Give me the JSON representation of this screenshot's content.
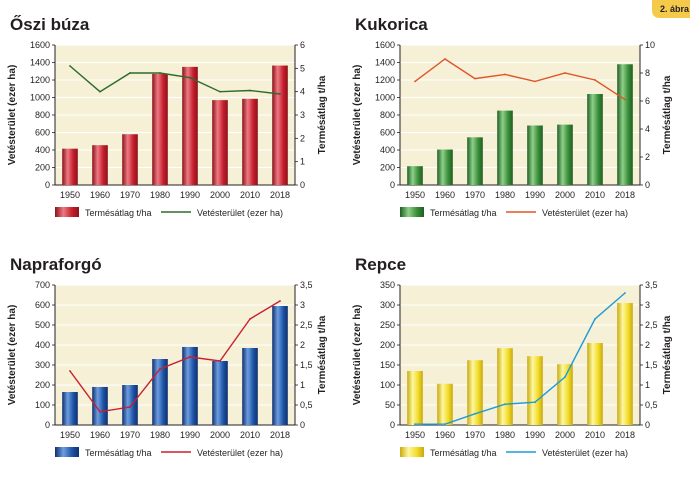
{
  "badge": "2. ábra",
  "colors": {
    "plot_bg": "#f5f0d6",
    "badge_bg": "#f5c94a"
  },
  "chart_data": [
    {
      "type": "bar",
      "title": "Őszi búza",
      "categories": [
        "1950",
        "1960",
        "1970",
        "1980",
        "1990",
        "2000",
        "2010",
        "2018"
      ],
      "ylabel": "Vetésterület (ezer ha)",
      "y2label": "Termésátlag t/ha",
      "ylim": [
        0,
        1600
      ],
      "yticks": [
        "0",
        "200",
        "400",
        "600",
        "800",
        "1000",
        "1200",
        "1400",
        "1600"
      ],
      "y2lim": [
        0,
        6
      ],
      "y2ticks": [
        "0",
        "1",
        "2",
        "3",
        "4",
        "5",
        "6"
      ],
      "bar_series": {
        "name": "Termésátlag t/ha",
        "values": [
          415,
          455,
          580,
          1270,
          1350,
          970,
          985,
          1365
        ],
        "color": "#c8202e",
        "light": "#ec7a84",
        "dark": "#8c1119"
      },
      "line_series": {
        "name": "Vetésterület (ezer ha)",
        "values": [
          5.1,
          4.0,
          4.8,
          4.8,
          4.6,
          4.0,
          4.05,
          3.9
        ],
        "color": "#2e6b2a"
      }
    },
    {
      "type": "bar",
      "title": "Kukorica",
      "categories": [
        "1950",
        "1960",
        "1970",
        "1980",
        "1990",
        "2000",
        "2010",
        "2018"
      ],
      "ylabel": "Vetésterület (ezer ha)",
      "y2label": "Termésátlag t/ha",
      "ylim": [
        0,
        1600
      ],
      "yticks": [
        "0",
        "200",
        "400",
        "600",
        "800",
        "1000",
        "1200",
        "1400",
        "1600"
      ],
      "y2lim": [
        0,
        10
      ],
      "y2ticks": [
        "0",
        "2",
        "4",
        "6",
        "8",
        "10"
      ],
      "bar_series": {
        "name": "Termésátlag t/ha",
        "values": [
          215,
          405,
          545,
          850,
          680,
          690,
          1040,
          1380
        ],
        "color": "#3a8f3a",
        "light": "#8fd08a",
        "dark": "#1f5e22"
      },
      "line_series": {
        "name": "Vetésterület (ezer ha)",
        "values": [
          7.4,
          9.0,
          7.6,
          7.9,
          7.4,
          8.0,
          7.5,
          6.1
        ],
        "color": "#e0552a"
      }
    },
    {
      "type": "bar",
      "title": "Napraforgó",
      "categories": [
        "1950",
        "1960",
        "1970",
        "1980",
        "1990",
        "2000",
        "2010",
        "2018"
      ],
      "ylabel": "Vetésterület (ezer ha)",
      "y2label": "Termésátlag t/ha",
      "ylim": [
        0,
        700
      ],
      "yticks": [
        "0",
        "100",
        "200",
        "300",
        "400",
        "500",
        "600",
        "700"
      ],
      "y2lim": [
        0,
        3.5
      ],
      "y2ticks": [
        "0",
        "0,5",
        "1",
        "1,5",
        "2",
        "2,5",
        "3",
        "3,5"
      ],
      "bar_series": {
        "name": "Termésátlag t/ha",
        "values": [
          165,
          190,
          200,
          330,
          390,
          320,
          385,
          595
        ],
        "color": "#1f56a8",
        "light": "#6e9ee0",
        "dark": "#0f2f6e"
      },
      "line_series": {
        "name": "Vetésterület (ezer ha)",
        "values": [
          1.35,
          0.33,
          0.45,
          1.4,
          1.7,
          1.6,
          2.65,
          3.1
        ],
        "color": "#c8202e"
      }
    },
    {
      "type": "bar",
      "title": "Repce",
      "categories": [
        "1950",
        "1960",
        "1970",
        "1980",
        "1990",
        "2000",
        "2010",
        "2018"
      ],
      "ylabel": "Vetésterület (ezer ha)",
      "y2label": "Termésátlag t/ha",
      "ylim": [
        0,
        350
      ],
      "yticks": [
        "0",
        "50",
        "100",
        "150",
        "200",
        "250",
        "300",
        "350"
      ],
      "y2lim": [
        0,
        3.5
      ],
      "y2ticks": [
        "0",
        "0,5",
        "1",
        "1,5",
        "2",
        "2,5",
        "3",
        "3,5"
      ],
      "bar_series": {
        "name": "Termésátlag t/ha",
        "values": [
          135,
          103,
          162,
          192,
          172,
          152,
          205,
          305
        ],
        "color": "#f2dc2a",
        "light": "#fdf7a0",
        "dark": "#c9a90e"
      },
      "line_series": {
        "name": "Vetésterület (ezer ha)",
        "values": [
          0.02,
          0.02,
          0.28,
          0.52,
          0.57,
          1.2,
          2.65,
          3.3
        ],
        "color": "#1f9bd6"
      }
    }
  ]
}
